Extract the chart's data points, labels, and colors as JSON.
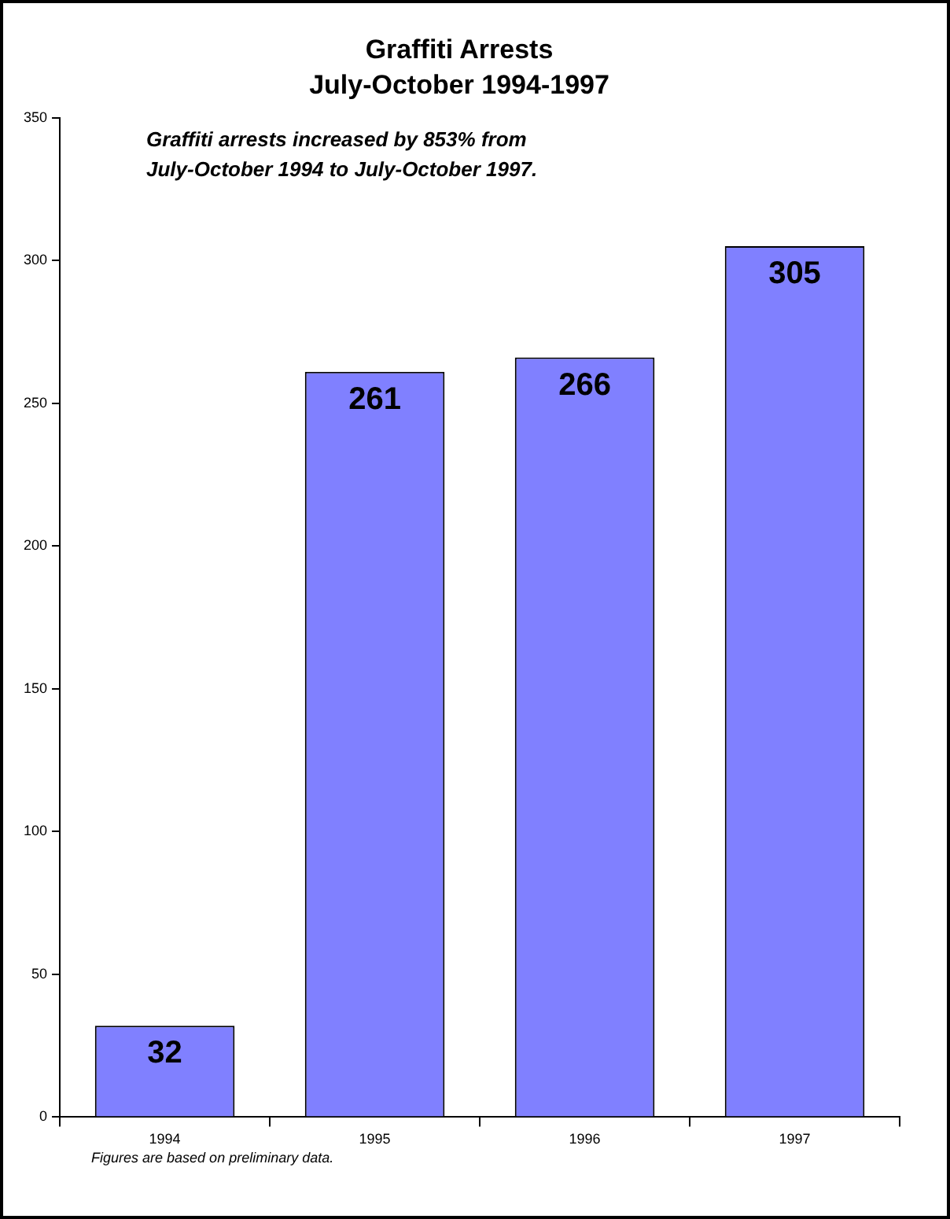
{
  "chart_data": {
    "type": "bar",
    "title": "Graffiti Arrests",
    "subtitle": "July-October 1994-1997",
    "categories": [
      "1994",
      "1995",
      "1996",
      "1997"
    ],
    "values": [
      32,
      261,
      266,
      305
    ],
    "color": "#8080ff",
    "ylim": [
      0,
      350
    ],
    "yticks": [
      0,
      50,
      100,
      150,
      200,
      250,
      300,
      350
    ],
    "data_labels": true,
    "grid": false,
    "legend": false,
    "annotations": [
      "Graffiti arrests increased by 853% from July-October 1994 to July-October 1997.",
      "Figures are based on preliminary data."
    ]
  }
}
